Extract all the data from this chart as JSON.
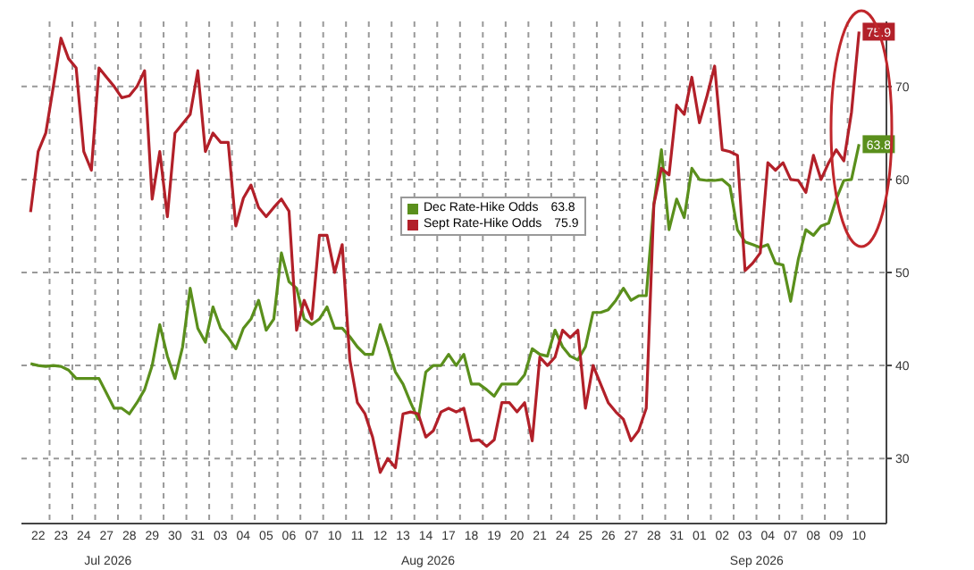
{
  "chart_data": {
    "type": "line",
    "legend": "top",
    "grid": true,
    "categories": [
      null,
      "22",
      null,
      null,
      "23",
      null,
      null,
      "24",
      null,
      null,
      "27",
      null,
      null,
      "28",
      null,
      null,
      "29",
      null,
      null,
      "30",
      null,
      null,
      "31",
      null,
      null,
      "03",
      null,
      null,
      "04",
      null,
      null,
      "05",
      null,
      null,
      "06",
      null,
      null,
      "07",
      null,
      null,
      "10",
      null,
      null,
      "11",
      null,
      null,
      "12",
      null,
      null,
      "13",
      null,
      null,
      "14",
      null,
      null,
      "17",
      null,
      null,
      "18",
      null,
      null,
      "19",
      null,
      null,
      "20",
      null,
      null,
      "21",
      null,
      null,
      "24",
      null,
      null,
      "25",
      null,
      null,
      "26",
      null,
      null,
      "27",
      null,
      null,
      "28",
      null,
      null,
      "31",
      null,
      null,
      "01",
      null,
      null,
      "02",
      null,
      null,
      "03",
      null,
      null,
      "04",
      null,
      null,
      "07",
      null,
      null,
      "08",
      null,
      null,
      "09",
      null,
      null,
      "10",
      null
    ],
    "ylim": [
      23,
      77
    ],
    "yticks": [
      30,
      40,
      50,
      60,
      70
    ],
    "annotations": [
      "Jul 2026",
      "Aug 2026",
      "Sep 2026"
    ],
    "series": [
      {
        "name": "Dec Rate-Hike Odds",
        "color": "#5a8f1c",
        "values": [
          40.2,
          40,
          39.9,
          40,
          39.9,
          39.5,
          38.6,
          38.6,
          38.6,
          38.6,
          37,
          35.4,
          35.4,
          34.8,
          36,
          37.4,
          40,
          44.4,
          41,
          38.6,
          42,
          48.3,
          44,
          42.5,
          46.3,
          44,
          43,
          41.8,
          44,
          45,
          47,
          43.8,
          45,
          52.1,
          49,
          48.3,
          45,
          44.4,
          45,
          46.3,
          44,
          44,
          43.1,
          42,
          41.2,
          41.2,
          44.4,
          42,
          39.3,
          38,
          36,
          34.2,
          39.3,
          40,
          40,
          41.2,
          40,
          41.2,
          38,
          38,
          37.4,
          36.7,
          38,
          38,
          38,
          39,
          41.8,
          41.2,
          41,
          43.8,
          42,
          41,
          40.6,
          42,
          45.7,
          45.7,
          46,
          47,
          48.3,
          47,
          47.5,
          47.5,
          57.3,
          63.2,
          54.6,
          57.9,
          55.9,
          61.2,
          60,
          59.9,
          59.9,
          60,
          59.3,
          54.6,
          53.3,
          53,
          52.7,
          53,
          51,
          50.8,
          46.9,
          51.4,
          54.6,
          54,
          55,
          55.3,
          57.9,
          59.9,
          60,
          63.8,
          null
        ],
        "value_labels": [
          null,
          null,
          null,
          null,
          null,
          null,
          null,
          null,
          null,
          null,
          null,
          null,
          null,
          null,
          null,
          null,
          null,
          null,
          null,
          null,
          null,
          null,
          null,
          null,
          null,
          null,
          null,
          null,
          null,
          null,
          null,
          null,
          null,
          null,
          null,
          null,
          null,
          null,
          null,
          null,
          null,
          null,
          null,
          null,
          null,
          null,
          null,
          null,
          null,
          null,
          null,
          null,
          null,
          null,
          null,
          null,
          null,
          null,
          null,
          null,
          null,
          null,
          null,
          null,
          null,
          null,
          null,
          null,
          null,
          null,
          null,
          null,
          null,
          null,
          null,
          null,
          null,
          null,
          null,
          null,
          null,
          null,
          null,
          null,
          null,
          null,
          null,
          null,
          null,
          null,
          null,
          null,
          null,
          null,
          null,
          null,
          null,
          null,
          null,
          null,
          null,
          null,
          null,
          null,
          null,
          null,
          null,
          null,
          null,
          "63.8",
          null
        ]
      },
      {
        "name": "Sept Rate-Hike Odds",
        "color": "#b22029",
        "values": [
          56.5,
          63,
          65,
          70,
          75.2,
          73,
          72,
          63,
          61,
          72,
          71,
          70,
          68.8,
          69,
          70,
          71.7,
          57.9,
          63,
          56,
          65,
          66,
          67,
          71.7,
          63,
          65,
          64,
          64,
          55,
          58,
          59.4,
          57,
          56,
          57,
          57.9,
          56.6,
          43.8,
          47,
          45,
          54,
          54,
          50,
          53,
          40.6,
          36,
          34.8,
          32.3,
          28.5,
          30,
          29,
          34.8,
          35,
          34.8,
          32.3,
          33,
          35,
          35.4,
          35,
          35.4,
          31.9,
          32,
          31.3,
          32,
          36,
          36,
          35,
          36,
          31.9,
          40.9,
          40,
          40.9,
          43.8,
          43,
          43.8,
          35.4,
          40,
          38,
          36,
          35,
          34.2,
          31.9,
          33,
          35.4,
          57.3,
          61.2,
          60.5,
          68,
          67,
          71,
          66.1,
          69,
          72.2,
          63.2,
          63,
          62.6,
          50.2,
          51,
          52.1,
          61.8,
          61,
          61.8,
          60,
          59.9,
          58.6,
          62.6,
          60,
          61.8,
          63.2,
          62,
          67.2,
          75.9,
          null
        ],
        "value_labels": [
          null,
          null,
          null,
          null,
          null,
          null,
          null,
          null,
          null,
          null,
          null,
          null,
          null,
          null,
          null,
          null,
          null,
          null,
          null,
          null,
          null,
          null,
          null,
          null,
          null,
          null,
          null,
          null,
          null,
          null,
          null,
          null,
          null,
          null,
          null,
          null,
          null,
          null,
          null,
          null,
          null,
          null,
          null,
          null,
          null,
          null,
          null,
          null,
          null,
          null,
          null,
          null,
          null,
          null,
          null,
          null,
          null,
          null,
          null,
          null,
          null,
          null,
          null,
          null,
          null,
          null,
          null,
          null,
          null,
          null,
          null,
          null,
          null,
          null,
          null,
          null,
          null,
          null,
          null,
          null,
          null,
          null,
          null,
          null,
          null,
          null,
          null,
          null,
          null,
          null,
          null,
          null,
          null,
          null,
          null,
          null,
          null,
          null,
          null,
          null,
          null,
          null,
          null,
          null,
          null,
          null,
          null,
          null,
          null,
          "75.9",
          null
        ]
      }
    ]
  }
}
